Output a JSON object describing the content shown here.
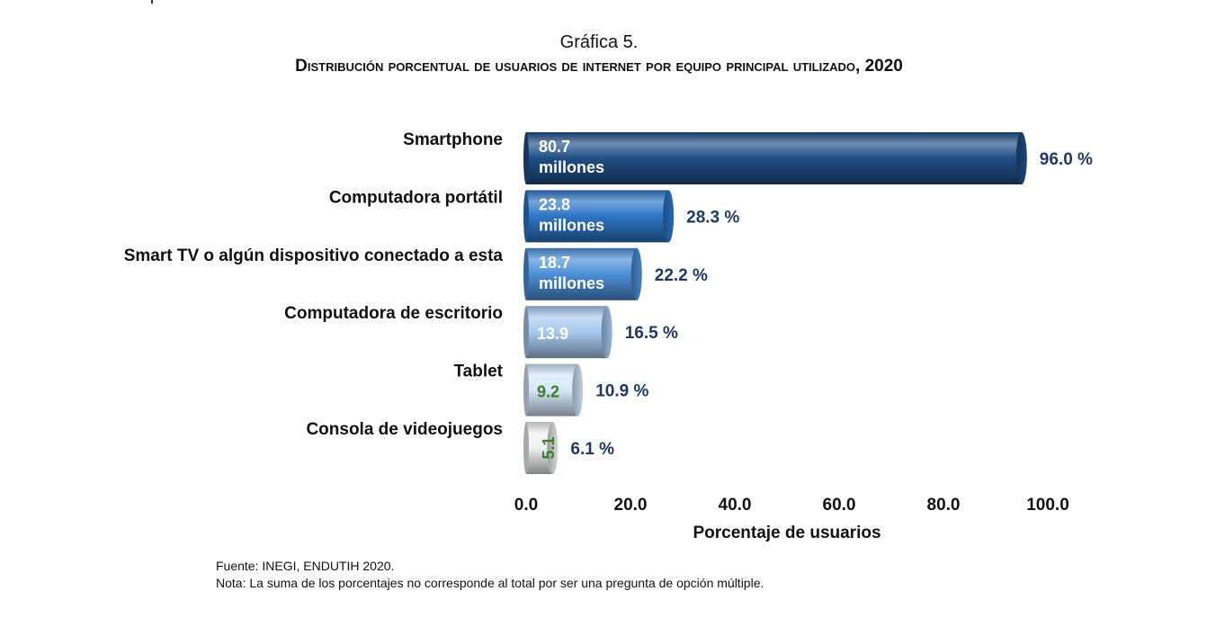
{
  "header": {
    "chart_number": "Gráfica 5.",
    "title": "Distribución porcentual de usuarios de internet por equipo principal utilizado, 2020"
  },
  "chart_data": {
    "type": "bar",
    "orientation": "horizontal",
    "title": "Distribución porcentual de usuarios de internet por equipo principal utilizado, 2020",
    "xlabel": "Porcentaje de usuarios",
    "ylabel": "",
    "xlim": [
      0,
      100
    ],
    "xticks": [
      "0.0",
      "20.0",
      "40.0",
      "60.0",
      "80.0",
      "100.0"
    ],
    "grid": false,
    "categories": [
      "Smartphone",
      "Computadora portátil",
      "Smart TV o algún dispositivo conectado a esta",
      "Computadora de escritorio",
      "Tablet",
      "Consola de videojuegos"
    ],
    "values": [
      96.0,
      28.3,
      22.2,
      16.5,
      10.9,
      6.1
    ],
    "value_labels": [
      "96.0 %",
      "28.3 %",
      "22.2 %",
      "16.5 %",
      "10.9 %",
      "6.1 %"
    ],
    "users_millions": [
      80.7,
      23.8,
      18.7,
      13.9,
      9.2,
      5.1
    ],
    "users_labels": [
      [
        "80.7",
        "millones"
      ],
      [
        "23.8",
        "millones"
      ],
      [
        "18.7",
        "millones"
      ],
      [
        "13.9"
      ],
      [
        "9.2"
      ],
      [
        "5.1"
      ]
    ],
    "bar_colors": [
      "#1f4e85",
      "#2e75c6",
      "#4c8fd8",
      "#a7c9ee",
      "#d6e8fa",
      "#eef2f0"
    ],
    "inbar_text_colors": [
      "#ffffff",
      "#ffffff",
      "#ffffff",
      "#ffffff",
      "#3a7d2c",
      "#3a7d2c"
    ]
  },
  "footer": {
    "source": "Fuente: INEGI, ENDUTIH 2020.",
    "note": "Nota: La suma de los porcentajes no corresponde al total por ser una pregunta de opción múltiple."
  }
}
